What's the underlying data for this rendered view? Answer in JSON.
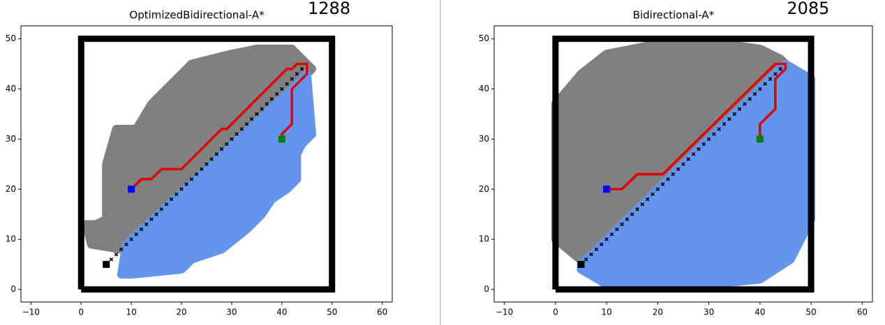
{
  "chart_data": [
    {
      "type": "path-plan",
      "title": "OptimizedBidirectional-A*",
      "annotation": "1288",
      "xlim": [
        -12,
        62
      ],
      "ylim": [
        -2.5,
        52.6
      ],
      "xticks": [
        {
          "value": -10,
          "label": "−10"
        },
        0,
        10,
        20,
        30,
        40,
        50,
        60
      ],
      "yticks": [
        0,
        10,
        20,
        30,
        40,
        50
      ],
      "walls": {
        "color": "#000000",
        "x": [
          0,
          50,
          50,
          0,
          0
        ],
        "y": [
          0,
          0,
          50,
          50,
          0
        ]
      },
      "regions": [
        {
          "color": "#808080",
          "x": [
            2,
            1,
            3,
            5,
            5,
            7,
            11,
            14,
            18,
            22,
            30,
            35,
            42,
            46,
            44,
            8
          ],
          "y": [
            9,
            13,
            13,
            14,
            25,
            32,
            32,
            37,
            41,
            45,
            47,
            48,
            48,
            44,
            42,
            8
          ]
        },
        {
          "color": "#6495ed",
          "x": [
            8,
            10,
            20,
            22,
            28,
            33,
            36,
            38,
            41,
            43,
            43,
            44,
            46,
            45,
            42,
            9
          ],
          "y": [
            3,
            3,
            4,
            6,
            8,
            12,
            15,
            18,
            20,
            22,
            27,
            29,
            31,
            43,
            40,
            9
          ]
        }
      ],
      "diagonal": {
        "color": "#000000",
        "x": [
          6,
          7,
          8,
          9,
          10,
          11,
          12,
          13,
          14,
          15,
          16,
          17,
          18,
          19,
          20,
          21,
          22,
          23,
          24,
          25,
          26,
          27,
          28,
          29,
          30,
          31,
          32,
          33,
          34,
          35,
          36,
          37,
          38,
          39,
          40,
          41,
          42,
          43,
          44
        ],
        "y": [
          6,
          7,
          8,
          9,
          10,
          11,
          12,
          13,
          14,
          15,
          16,
          17,
          18,
          19,
          20,
          21,
          22,
          23,
          24,
          25,
          26,
          27,
          28,
          29,
          30,
          31,
          32,
          33,
          34,
          35,
          36,
          37,
          38,
          39,
          40,
          41,
          42,
          43,
          44
        ]
      },
      "path": {
        "color": "#e00000",
        "x": [
          10,
          12,
          14,
          16,
          20,
          28,
          29,
          41,
          42,
          43,
          45,
          45,
          42,
          42,
          40,
          40
        ],
        "y": [
          20,
          22,
          22,
          24,
          24,
          32,
          32,
          44,
          44,
          45,
          45,
          43,
          40,
          33,
          31,
          30
        ]
      },
      "points": [
        {
          "color": "#000000",
          "x": 5,
          "y": 5
        },
        {
          "color": "#0000ff",
          "x": 10,
          "y": 20
        },
        {
          "color": "#008000",
          "x": 40,
          "y": 30
        }
      ]
    },
    {
      "type": "path-plan",
      "title": "Bidirectional-A*",
      "annotation": "2085",
      "xlim": [
        -12,
        62
      ],
      "ylim": [
        -2.5,
        52.6
      ],
      "xticks": [
        {
          "value": -10,
          "label": "−10"
        },
        0,
        10,
        20,
        30,
        40,
        50,
        60
      ],
      "yticks": [
        0,
        10,
        20,
        30,
        40,
        50
      ],
      "walls": {
        "color": "#000000",
        "x": [
          0,
          50,
          50,
          0,
          0
        ],
        "y": [
          0,
          0,
          50,
          50,
          0
        ]
      },
      "regions": [
        {
          "color": "#808080",
          "x": [
            6,
            0,
            0,
            5,
            10,
            20,
            33,
            40,
            44,
            45,
            5
          ],
          "y": [
            5,
            10,
            37,
            43,
            47,
            49,
            49,
            48,
            46,
            45,
            5
          ]
        },
        {
          "color": "#6495ed",
          "x": [
            45,
            50,
            50,
            46,
            40,
            30,
            10,
            5,
            5
          ],
          "y": [
            45,
            42,
            14,
            6,
            2,
            1,
            1,
            4,
            5
          ]
        }
      ],
      "diagonal": {
        "color": "#000000",
        "x": [
          6,
          7,
          8,
          9,
          10,
          11,
          12,
          13,
          14,
          15,
          16,
          17,
          18,
          19,
          20,
          21,
          22,
          23,
          24,
          25,
          26,
          27,
          28,
          29,
          30,
          31,
          32,
          33,
          34,
          35,
          36,
          37,
          38,
          39,
          40,
          41,
          42,
          43,
          44
        ],
        "y": [
          6,
          7,
          8,
          9,
          10,
          11,
          12,
          13,
          14,
          15,
          16,
          17,
          18,
          19,
          20,
          21,
          22,
          23,
          24,
          25,
          26,
          27,
          28,
          29,
          30,
          31,
          32,
          33,
          34,
          35,
          36,
          37,
          38,
          39,
          40,
          41,
          42,
          43,
          44
        ]
      },
      "path": {
        "color": "#e00000",
        "x": [
          10,
          13,
          16,
          21,
          43,
          45,
          45,
          43,
          43,
          40,
          40
        ],
        "y": [
          20,
          20,
          23,
          23,
          45,
          45,
          44,
          42,
          36,
          33,
          30
        ]
      },
      "points": [
        {
          "color": "#000000",
          "x": 5,
          "y": 5
        },
        {
          "color": "#0000ff",
          "x": 10,
          "y": 20
        },
        {
          "color": "#008000",
          "x": 40,
          "y": 30
        }
      ]
    }
  ]
}
